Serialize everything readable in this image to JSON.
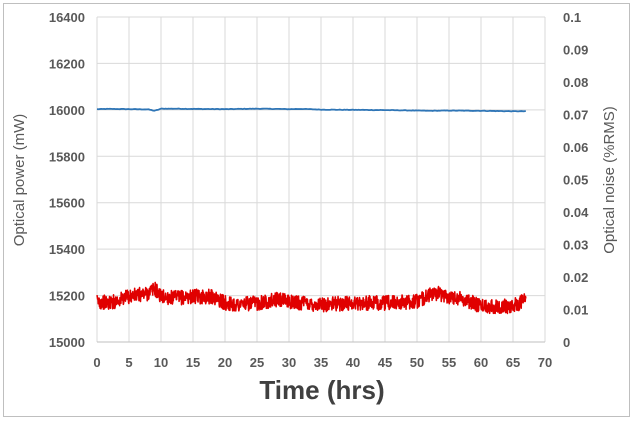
{
  "chart_data": {
    "type": "line",
    "title": "",
    "xlabel": "Time (hrs)",
    "ylabel_left": "Optical power (mW)",
    "ylabel_right": "Optical noise (%RMS)",
    "xlim": [
      0,
      70
    ],
    "ylim_left": [
      15000,
      16400
    ],
    "ylim_right": [
      0,
      0.1
    ],
    "x_ticks": [
      "0",
      "5",
      "10",
      "15",
      "20",
      "25",
      "30",
      "35",
      "40",
      "45",
      "50",
      "55",
      "60",
      "65",
      "70"
    ],
    "y_left_ticks": [
      "15000",
      "15200",
      "15400",
      "15600",
      "15800",
      "16000",
      "16200",
      "16400"
    ],
    "y_right_ticks": [
      "0",
      "0.01",
      "0.02",
      "0.03",
      "0.04",
      "0.05",
      "0.06",
      "0.07",
      "0.08",
      "0.09",
      "0.1"
    ],
    "grid": true,
    "legend": "none",
    "series": [
      {
        "axis": "left",
        "color": "#2e75b6",
        "x": [
          0,
          2,
          5,
          8,
          9,
          9.5,
          10,
          12,
          15,
          20,
          25,
          28,
          30,
          32,
          35,
          40,
          45,
          50,
          52,
          55,
          60,
          65,
          67
        ],
        "values": [
          16003,
          16004,
          16003,
          16002,
          15996,
          16000,
          16005,
          16005,
          16004,
          16003,
          16005,
          16004,
          16003,
          16004,
          16001,
          16000,
          15999,
          15997,
          15996,
          15997,
          15996,
          15994,
          15994
        ]
      },
      {
        "axis": "right",
        "color": "#e00000",
        "x": [
          0,
          2,
          5,
          8,
          9,
          10,
          12,
          15,
          18,
          20,
          22,
          25,
          28,
          30,
          32,
          35,
          40,
          45,
          50,
          52,
          53,
          55,
          57,
          60,
          63,
          65,
          67
        ],
        "values": [
          0.0125,
          0.012,
          0.014,
          0.015,
          0.0165,
          0.014,
          0.0135,
          0.014,
          0.014,
          0.012,
          0.0115,
          0.012,
          0.013,
          0.0125,
          0.012,
          0.0115,
          0.012,
          0.012,
          0.0125,
          0.0145,
          0.015,
          0.014,
          0.0135,
          0.011,
          0.011,
          0.011,
          0.013
        ]
      }
    ]
  }
}
